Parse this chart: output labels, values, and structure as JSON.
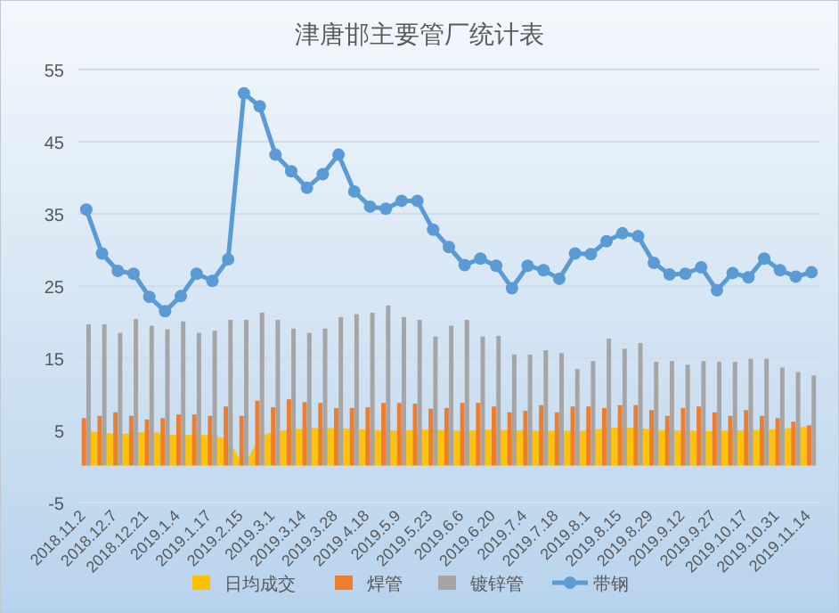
{
  "chart_data": {
    "type": "bar",
    "title": "津唐邯主要管厂统计表",
    "categories": [
      "2018.11.2",
      null,
      "2018.12.7",
      null,
      "2018.12.21",
      null,
      "2019.1.4",
      null,
      "2019.1.17",
      null,
      "2019.2.15",
      null,
      "2019.3.1",
      null,
      "2019.3.14",
      null,
      "2019.3.28",
      null,
      "2019.4.18",
      null,
      "2019.5.9",
      null,
      "2019.5.23",
      null,
      "2019.6.6",
      null,
      "2019.6.20",
      null,
      "2019.7.4",
      null,
      "2019.7.18",
      null,
      "2019.8.1",
      null,
      "2019.8.15",
      null,
      "2019.8.29",
      null,
      "2019.9.12",
      null,
      "2019.9.27",
      null,
      "2019.10.17",
      null,
      "2019.10.31",
      null,
      "2019.11.14"
    ],
    "series": [
      {
        "name": "日均成交",
        "type": "area",
        "color": "#ffc000",
        "values": [
          4.9,
          4.7,
          4.5,
          4.6,
          4.9,
          4.5,
          4.3,
          4.4,
          4.3,
          3.8,
          0,
          4.2,
          4.9,
          5.1,
          5.3,
          5.3,
          5.3,
          5.2,
          5.1,
          5.0,
          5.0,
          5.1,
          5.1,
          5.0,
          4.9,
          5.1,
          5.1,
          5.0,
          5.0,
          4.9,
          5.0,
          4.9,
          5.0,
          5.3,
          5.4,
          5.3,
          5.1,
          5.0,
          5.0,
          4.9,
          4.9,
          5.0,
          5.0,
          5.1,
          5.2,
          5.4,
          5.6
        ]
      },
      {
        "name": "焊管",
        "color": "#ed7d31",
        "values": [
          6.7,
          7.0,
          7.5,
          7.0,
          6.5,
          6.7,
          7.2,
          7.2,
          7.0,
          8.3,
          7.0,
          9.1,
          8.2,
          9.3,
          8.9,
          8.8,
          8.1,
          8.1,
          8.2,
          8.8,
          8.8,
          8.7,
          8.0,
          8.1,
          8.8,
          8.8,
          8.3,
          7.5,
          7.7,
          8.5,
          7.5,
          8.3,
          8.3,
          8.1,
          8.5,
          8.5,
          7.8,
          7.0,
          8.1,
          8.3,
          7.5,
          7.0,
          7.8,
          7.0,
          6.7,
          6.2,
          5.7
        ]
      },
      {
        "name": "镀锌管",
        "color": "#a5a5a5",
        "values": [
          19.7,
          19.7,
          18.5,
          20.4,
          19.5,
          19.0,
          20.1,
          18.5,
          18.8,
          20.3,
          20.3,
          21.3,
          20.3,
          19.1,
          18.5,
          19.1,
          20.7,
          21.1,
          21.3,
          22.3,
          20.7,
          20.3,
          18.0,
          19.5,
          20.3,
          18.0,
          18.1,
          15.5,
          15.5,
          16.1,
          15.7,
          13.5,
          14.6,
          17.7,
          16.3,
          17.1,
          14.5,
          14.6,
          14.1,
          14.6,
          14.5,
          14.5,
          14.9,
          14.9,
          13.7,
          13.1,
          12.6
        ]
      },
      {
        "name": "带钢",
        "type": "line",
        "marker": "circle",
        "color": "#5b9bd5",
        "values": [
          35.6,
          29.5,
          27.1,
          26.7,
          23.5,
          21.5,
          23.6,
          26.7,
          25.7,
          28.7,
          51.7,
          49.9,
          43.2,
          40.9,
          38.6,
          40.5,
          43.2,
          38.1,
          36.0,
          35.7,
          36.8,
          36.8,
          32.8,
          30.4,
          27.9,
          28.8,
          27.8,
          24.7,
          27.8,
          27.2,
          26.0,
          29.5,
          29.4,
          31.2,
          32.3,
          31.9,
          28.2,
          26.6,
          26.7,
          27.6,
          24.4,
          26.8,
          26.2,
          28.8,
          27.2,
          26.3,
          26.9
        ]
      }
    ],
    "ylim": [
      -5,
      55
    ],
    "yticks": [
      -5,
      5,
      15,
      25,
      35,
      45,
      55
    ],
    "grid": "y",
    "legend": "bottom"
  }
}
